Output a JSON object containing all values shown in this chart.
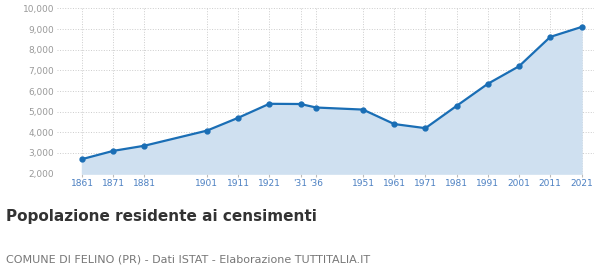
{
  "years": [
    1861,
    1871,
    1881,
    1901,
    1911,
    1921,
    1931,
    1936,
    1951,
    1961,
    1971,
    1981,
    1991,
    2001,
    2011,
    2021
  ],
  "population": [
    2700,
    3100,
    3350,
    4080,
    4700,
    5380,
    5370,
    5200,
    5100,
    4400,
    4200,
    5280,
    6350,
    7200,
    8620,
    9100
  ],
  "ylim": [
    2000,
    10000
  ],
  "yticks": [
    2000,
    3000,
    4000,
    5000,
    6000,
    7000,
    8000,
    9000,
    10000
  ],
  "line_color": "#1a6eb5",
  "fill_color": "#cfe0f0",
  "marker_color": "#1a6eb5",
  "grid_color": "#cccccc",
  "bg_color": "#ffffff",
  "title": "Popolazione residente ai censimenti",
  "subtitle": "COMUNE DI FELINO (PR) - Dati ISTAT - Elaborazione TUTTITALIA.IT",
  "title_fontsize": 11,
  "subtitle_fontsize": 8,
  "tick_label_color": "#4a7fc1",
  "ytick_label_color": "#999999",
  "xlim": [
    1853,
    2025
  ]
}
